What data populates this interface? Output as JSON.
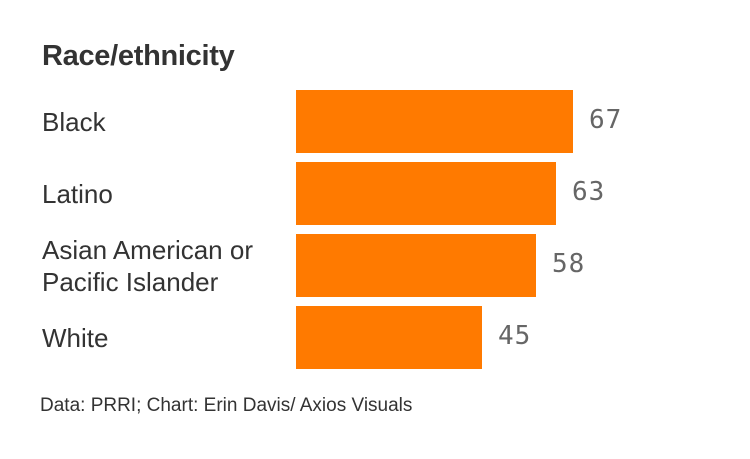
{
  "chart_data": {
    "type": "bar",
    "orientation": "horizontal",
    "title": "Race/ethnicity",
    "categories": [
      "Black",
      "Latino",
      "Asian American or\nPacific Islander",
      "White"
    ],
    "values": [
      67,
      63,
      58,
      45
    ],
    "xlim": [
      0,
      72
    ],
    "grid": false,
    "bar_color": "#ff7a00"
  },
  "footer": "Data: PRRI; Chart: Erin Davis/ Axios Visuals"
}
